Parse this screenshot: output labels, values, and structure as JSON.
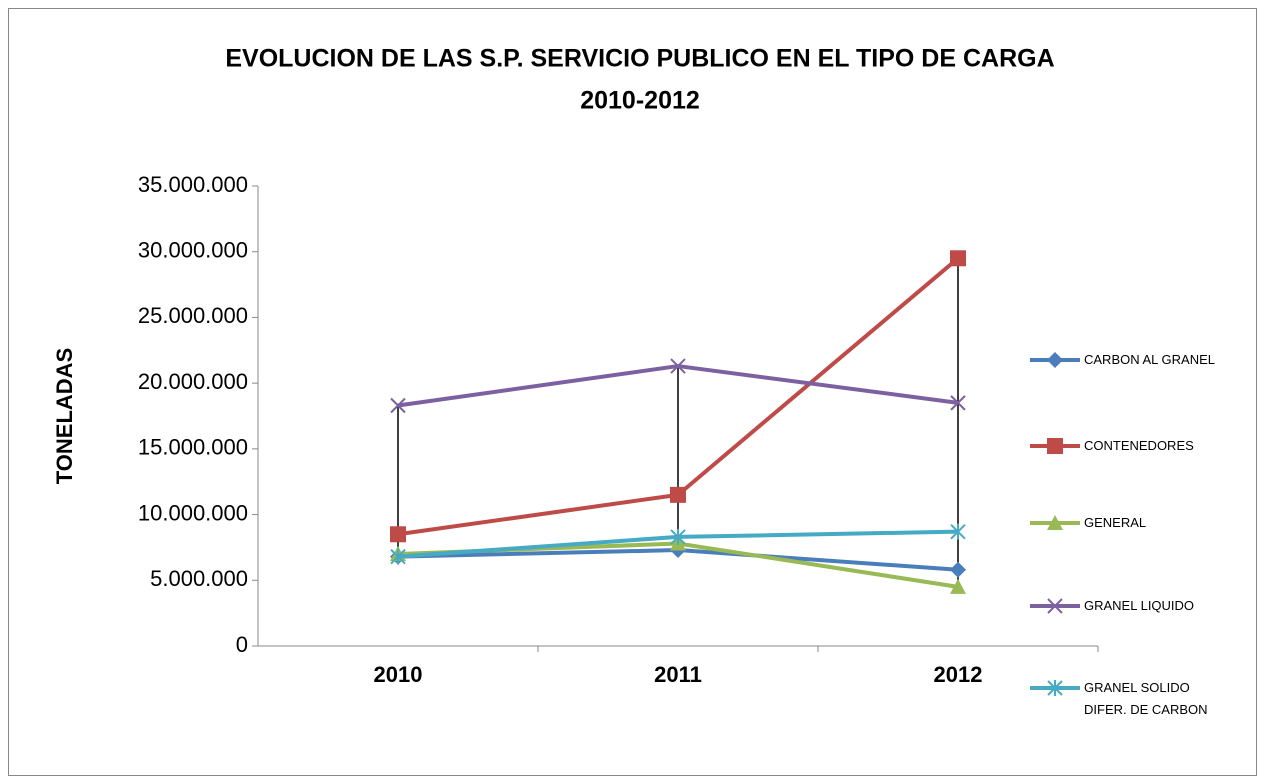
{
  "chart_data": {
    "type": "line",
    "title": "EVOLUCION DE LAS S.P. SERVICIO PUBLICO EN EL TIPO DE CARGA",
    "subtitle": "2010-2012",
    "y_label": "TONELADAS",
    "categories": [
      "2010",
      "2011",
      "2012"
    ],
    "series": [
      {
        "name": "CARBON AL GRANEL",
        "color": "#4a7ebb",
        "marker": "diamond",
        "values": [
          6800000,
          7300000,
          5800000
        ]
      },
      {
        "name": "CONTENEDORES",
        "color": "#be4b48",
        "marker": "square",
        "values": [
          8500000,
          11500000,
          29500000
        ]
      },
      {
        "name": "GENERAL",
        "color": "#98b954",
        "marker": "triangle",
        "values": [
          7000000,
          7800000,
          4500000
        ]
      },
      {
        "name": "GRANEL LIQUIDO",
        "color": "#7d60a0",
        "marker": "x",
        "values": [
          18300000,
          21300000,
          18500000
        ]
      },
      {
        "name": "GRANEL SOLIDO DIFER. DE CARBON",
        "color": "#46aac5",
        "marker": "star",
        "values": [
          6800000,
          8300000,
          8700000
        ]
      }
    ],
    "ylim": [
      0,
      35000000
    ],
    "yticks": [
      0,
      {
        "value": 5000000,
        "label": "5.000.000"
      },
      {
        "value": 10000000,
        "label": "10.000.000"
      },
      {
        "value": 15000000,
        "label": "15.000.000"
      },
      {
        "value": 20000000,
        "label": "20.000.000"
      },
      {
        "value": 25000000,
        "label": "25.000.000"
      },
      {
        "value": 30000000,
        "label": "30.000.000"
      },
      {
        "value": 35000000,
        "label": "35.000.000"
      }
    ],
    "high_low_lines": true,
    "legend": "right"
  }
}
